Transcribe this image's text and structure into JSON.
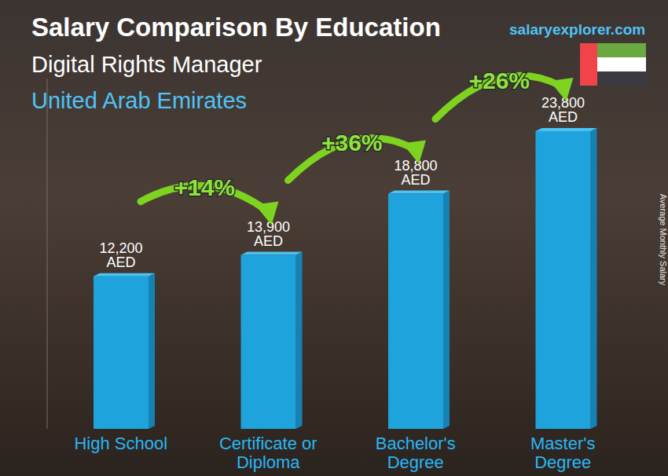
{
  "chart_data": {
    "type": "bar",
    "title": "Salary Comparison By Education",
    "subtitle": "Digital Rights Manager",
    "location": "United Arab Emirates",
    "source": "salaryexplorer.com",
    "y_label": "Average Monthly Salary",
    "categories": [
      "High School",
      "Certificate or Diploma",
      "Bachelor's Degree",
      "Master's Degree"
    ],
    "values": [
      12200,
      13900,
      18800,
      23800
    ],
    "value_labels": [
      "12,200 AED",
      "13,900 AED",
      "18,800 AED",
      "23,800 AED"
    ],
    "data_labels": true,
    "color": "#1fa3dd",
    "ylim": [
      0,
      28000
    ],
    "tick_labels": false,
    "grid": false,
    "annotations": [
      {
        "text": "+14%",
        "from": "High School",
        "to": "Certificate or Diploma"
      },
      {
        "text": "+36%",
        "from": "Certificate or Diploma",
        "to": "Bachelor's Degree"
      },
      {
        "text": "+26%",
        "from": "Bachelor's Degree",
        "to": "Master's Degree"
      }
    ]
  }
}
